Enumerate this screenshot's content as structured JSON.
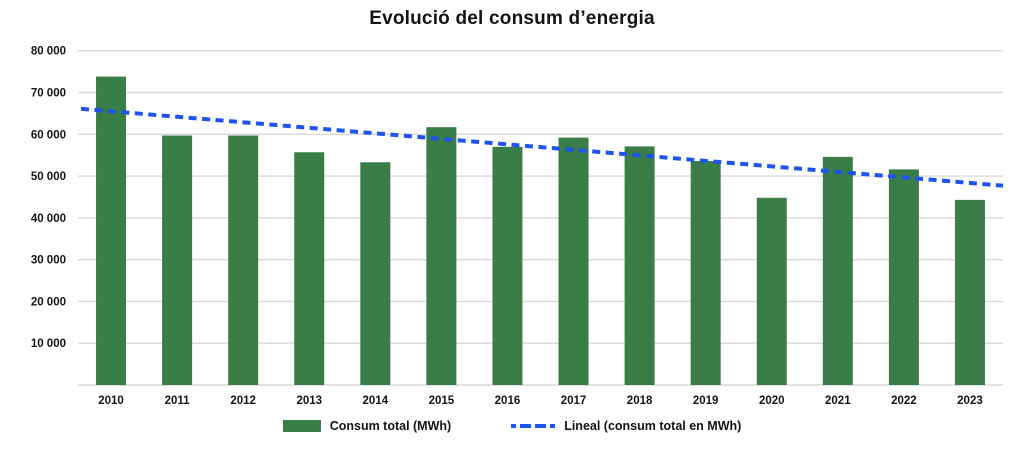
{
  "chart": {
    "title": "Evolució del consum d’energia",
    "legend": {
      "bars": "Consum total (MWh)",
      "trend": "Lineal (consum total en MWh)"
    }
  },
  "chart_data": {
    "type": "bar",
    "title": "Evolució del consum d’energia",
    "categories": [
      "2010",
      "2011",
      "2012",
      "2013",
      "2014",
      "2015",
      "2016",
      "2017",
      "2018",
      "2019",
      "2020",
      "2021",
      "2022",
      "2023"
    ],
    "series": [
      {
        "name": "Consum total (MWh)",
        "type": "bar",
        "color": "#3a7d46",
        "values": [
          73800,
          59700,
          59700,
          55700,
          53300,
          61700,
          57000,
          59200,
          57100,
          53600,
          44800,
          54600,
          51600,
          44300
        ]
      },
      {
        "name": "Lineal (consum total en MWh)",
        "type": "trendline",
        "style": "dashed",
        "color": "#1e53f2",
        "start_value": 66100,
        "end_value": 47700
      }
    ],
    "xlabel": "",
    "ylabel": "",
    "ylim": [
      0,
      80000
    ],
    "y_ticks": [
      {
        "value": 80000,
        "label": "80 000"
      },
      {
        "value": 70000,
        "label": "70 000"
      },
      {
        "value": 60000,
        "label": "60 000"
      },
      {
        "value": 50000,
        "label": "50 000"
      },
      {
        "value": 40000,
        "label": "40 000"
      },
      {
        "value": 30000,
        "label": "30 000"
      },
      {
        "value": 20000,
        "label": "20 000"
      },
      {
        "value": 10000,
        "label": "10 000"
      }
    ],
    "grid": true,
    "legend_position": "bottom",
    "colors": {
      "bar": "#3a7d46",
      "trend": "#1e53f2",
      "gridline": "#d9d9d9",
      "text": "#141414",
      "background": "#ffffff"
    }
  }
}
